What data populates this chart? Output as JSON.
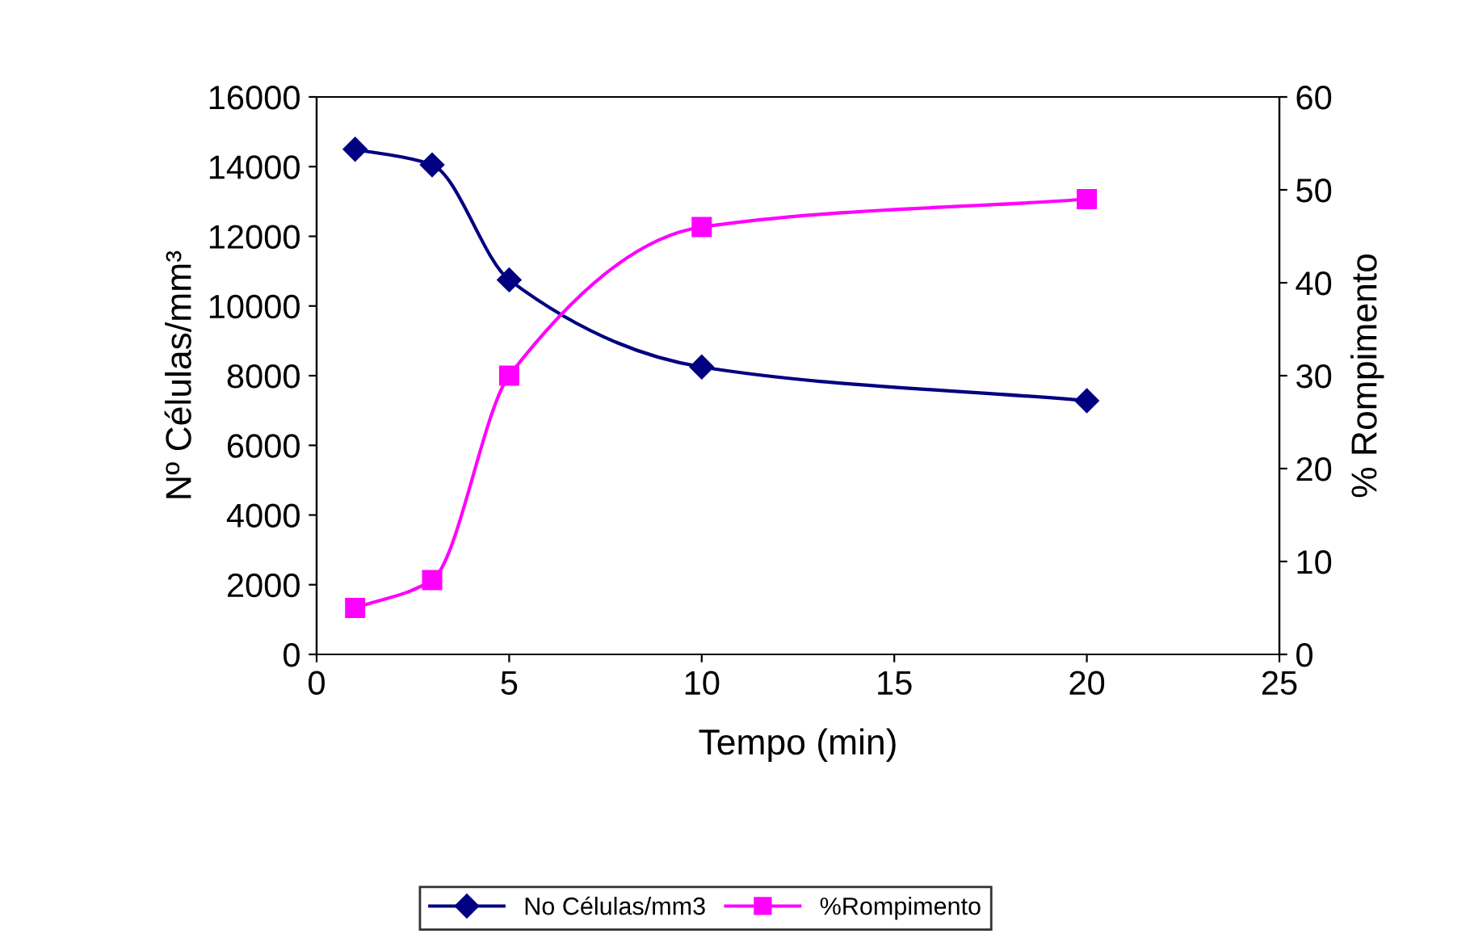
{
  "chart_data": {
    "type": "line",
    "xlabel": "Tempo (min)",
    "ylabel": "Nº Células/mm³",
    "y2label": "% Rompimento",
    "x": [
      1,
      3,
      5,
      10,
      20
    ],
    "series": [
      {
        "name": "No Células/mm3",
        "color": "#000080",
        "values": [
          14500,
          14050,
          10750,
          8250,
          7280
        ],
        "marker": "diamond"
      },
      {
        "name": "%Rompimento",
        "color": "#ff00ff",
        "values": [
          5,
          8,
          30,
          46,
          49
        ],
        "marker": "square",
        "axis": "y2"
      }
    ],
    "xlim": [
      0,
      25
    ],
    "xticks": [
      0,
      5,
      10,
      15,
      20,
      25
    ],
    "ylim": [
      0,
      16000
    ],
    "yticks": [
      0,
      2000,
      4000,
      6000,
      8000,
      10000,
      12000,
      14000,
      16000
    ],
    "y2lim": [
      0,
      60
    ],
    "y2ticks": [
      0,
      10,
      20,
      30,
      40,
      50,
      60
    ],
    "grid": false,
    "legend": "bottom",
    "line_style": "solid"
  }
}
